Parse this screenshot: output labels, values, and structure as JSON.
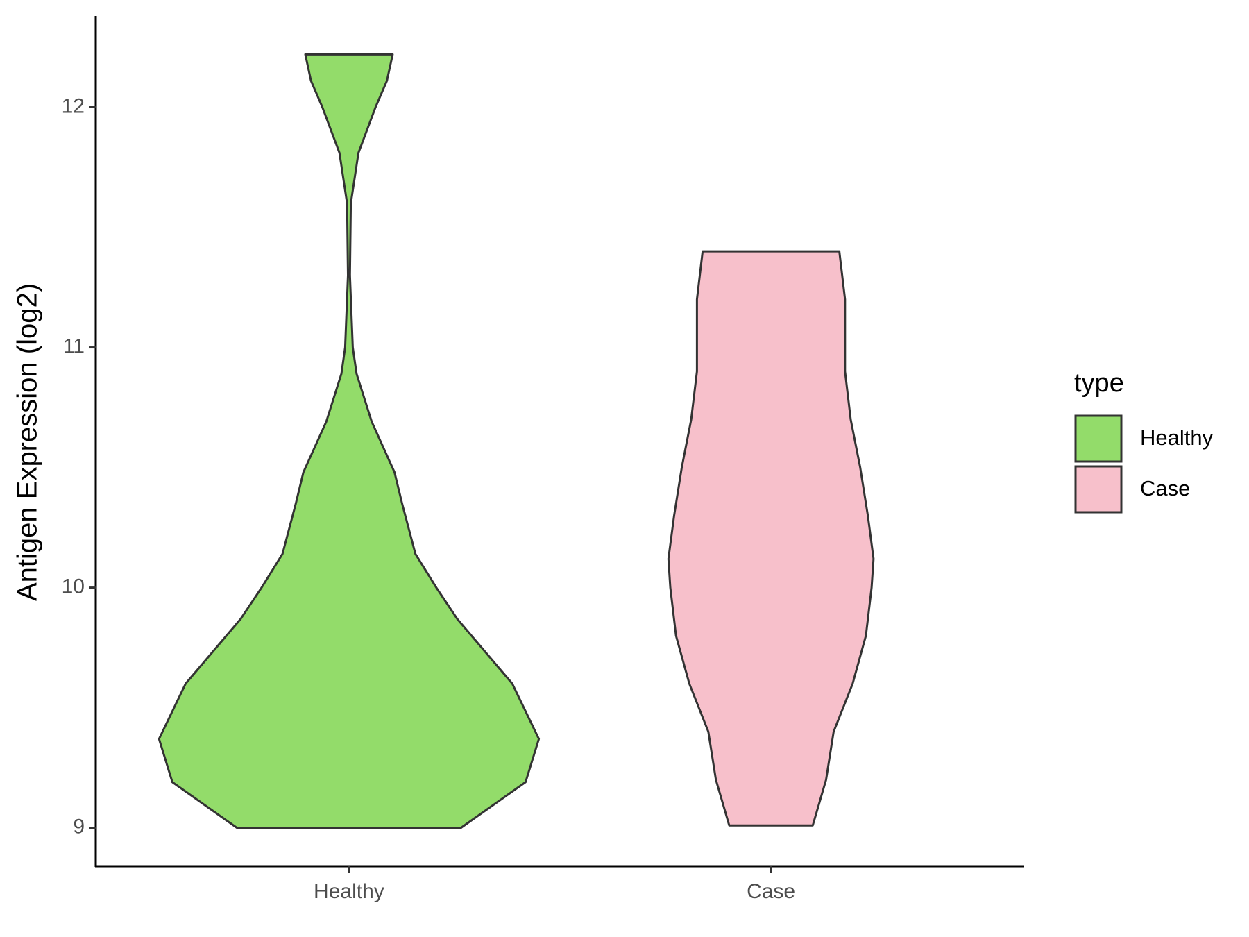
{
  "chart_data": {
    "type": "violin",
    "y_label": "Antigen Expression (log2)",
    "categories": [
      "Healthy",
      "Case"
    ],
    "ylim": [
      8.84,
      12.38
    ],
    "yticks": [
      9,
      10,
      11,
      12
    ],
    "legend_title": "type",
    "legend_position": "right",
    "series": [
      {
        "name": "Healthy",
        "color": "#93dc6a",
        "y": [
          9.0,
          9.19,
          9.37,
          9.6,
          9.87,
          10.0,
          10.14,
          10.35,
          10.48,
          10.69,
          10.89,
          11.0,
          11.3,
          11.6,
          11.81,
          12.0,
          12.11,
          12.22
        ],
        "widths": [
          0.59,
          0.93,
          1.0,
          0.86,
          0.57,
          0.46,
          0.35,
          0.28,
          0.24,
          0.12,
          0.04,
          0.02,
          0.005,
          0.01,
          0.05,
          0.14,
          0.2,
          0.23
        ]
      },
      {
        "name": "Case",
        "color": "#f7c0cb",
        "y": [
          9.01,
          9.2,
          9.4,
          9.6,
          9.8,
          10.0,
          10.12,
          10.3,
          10.5,
          10.7,
          10.9,
          11.0,
          11.2,
          11.4
        ],
        "widths": [
          0.22,
          0.29,
          0.33,
          0.43,
          0.5,
          0.53,
          0.54,
          0.51,
          0.47,
          0.42,
          0.39,
          0.39,
          0.39,
          0.36
        ]
      }
    ]
  }
}
